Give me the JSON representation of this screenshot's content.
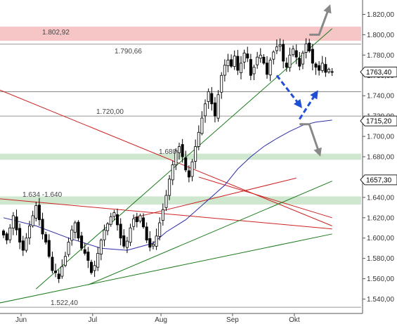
{
  "chart_data": {
    "type": "candlestick",
    "y_axis": {
      "ylim": [
        1530,
        1830
      ],
      "ticks": [
        "1.540,00",
        "1.560,00",
        "1.580,00",
        "1.600,00",
        "1.620,00",
        "1.640,00",
        "1.660,00",
        "1.680,00",
        "1.700,00",
        "1.720,00",
        "1.740,00",
        "1.760,00",
        "1.780,00",
        "1.800,00",
        "1.820,00"
      ],
      "tick_values": [
        1540,
        1560,
        1580,
        1600,
        1620,
        1640,
        1660,
        1680,
        1700,
        1720,
        1740,
        1760,
        1780,
        1800,
        1820
      ],
      "position": "right"
    },
    "x_axis": {
      "labels": [
        "Jun",
        "Jul",
        "Aug",
        "Sep",
        "Okt"
      ],
      "label_day_index": [
        0,
        22,
        43,
        65,
        84
      ],
      "n_days": 102
    },
    "level_labels": [
      {
        "text": "1.802,92",
        "value": 1802.92
      },
      {
        "text": "1.790,66",
        "value": 1790.66
      },
      {
        "text": "1.720,00",
        "value": 1720.0
      },
      {
        "text": "1.680",
        "value": 1680
      },
      {
        "text": "1.634 -1.640",
        "value": 1637
      },
      {
        "text": "1.522,40",
        "value": 1532
      }
    ],
    "horizontal_lines": [
      1790.66,
      1744,
      1720.0,
      1532
    ],
    "zones": [
      {
        "from": 1794,
        "to": 1808,
        "color": "#f6c6c6"
      },
      {
        "from": 1677,
        "to": 1683,
        "color": "#cfe6cf"
      },
      {
        "from": 1633,
        "to": 1641,
        "color": "#cfe6cf"
      }
    ],
    "price_boxes": [
      "1763,40",
      "1715,20",
      "1657,30"
    ],
    "price_box_values": [
      1763.4,
      1715.2,
      1657.3
    ],
    "closes": [
      1603,
      1598,
      1610,
      1622,
      1608,
      1596,
      1588,
      1600,
      1612,
      1622,
      1632,
      1618,
      1604,
      1596,
      1582,
      1568,
      1566,
      1560,
      1572,
      1582,
      1596,
      1608,
      1615,
      1600,
      1590,
      1585,
      1578,
      1566,
      1573,
      1585,
      1598,
      1608,
      1614,
      1621,
      1625,
      1613,
      1600,
      1592,
      1597,
      1610,
      1619,
      1616,
      1622,
      1611,
      1598,
      1591,
      1594,
      1602,
      1615,
      1628,
      1642,
      1658,
      1672,
      1686,
      1690,
      1680,
      1667,
      1660,
      1675,
      1690,
      1704,
      1718,
      1732,
      1744,
      1732,
      1720,
      1741,
      1760,
      1770,
      1775,
      1769,
      1779,
      1765,
      1772,
      1782,
      1777,
      1760,
      1768,
      1778,
      1780,
      1772,
      1761,
      1775,
      1783,
      1788,
      1790,
      1774,
      1768,
      1780,
      1786,
      1778,
      1769,
      1782,
      1791,
      1784,
      1772,
      1768,
      1765,
      1772,
      1763,
      1766,
      1763
    ],
    "moving_average": {
      "color": "#2d2da8",
      "days": [
        0,
        10,
        20,
        30,
        38,
        46,
        50,
        56,
        62,
        68,
        72,
        76,
        80,
        84,
        88,
        92,
        96,
        101
      ],
      "values": [
        1620,
        1612,
        1600,
        1590,
        1588,
        1595,
        1606,
        1618,
        1635,
        1652,
        1668,
        1680,
        1690,
        1698,
        1705,
        1711,
        1714,
        1716
      ]
    },
    "trendlines": [
      {
        "color": "#cc2222",
        "from": [
          -6,
          1752
        ],
        "to": [
          101,
          1612
        ]
      },
      {
        "color": "#cc2222",
        "from": [
          -6,
          1640
        ],
        "to": [
          101,
          1609
        ]
      },
      {
        "color": "#cc2222",
        "from": [
          40,
          1620
        ],
        "to": [
          90,
          1659
        ]
      },
      {
        "color": "#cc2222",
        "from": [
          60,
          1660
        ],
        "to": [
          101,
          1620
        ]
      },
      {
        "color": "#1a7a1a",
        "from": [
          10,
          1550
        ],
        "to": [
          101,
          1806
        ]
      },
      {
        "color": "#1a7a1a",
        "from": [
          -6,
          1533
        ],
        "to": [
          101,
          1604
        ]
      },
      {
        "color": "#1a7a1a",
        "from": [
          26,
          1554
        ],
        "to": [
          101,
          1656
        ]
      }
    ],
    "forecast_arrows": [
      {
        "color": "#1f4fd6",
        "points": [
          [
            84,
            1760
          ],
          [
            91,
            1731
          ]
        ]
      },
      {
        "color": "#1f4fd6",
        "points": [
          [
            91,
            1717
          ],
          [
            96,
            1742
          ]
        ]
      },
      {
        "color": "#888888",
        "points": [
          [
            94,
            1800
          ],
          [
            97,
            1800
          ],
          [
            100,
            1826
          ]
        ]
      },
      {
        "color": "#888888",
        "points": [
          [
            91,
            1712
          ],
          [
            94,
            1712
          ],
          [
            97,
            1684
          ]
        ]
      }
    ]
  }
}
